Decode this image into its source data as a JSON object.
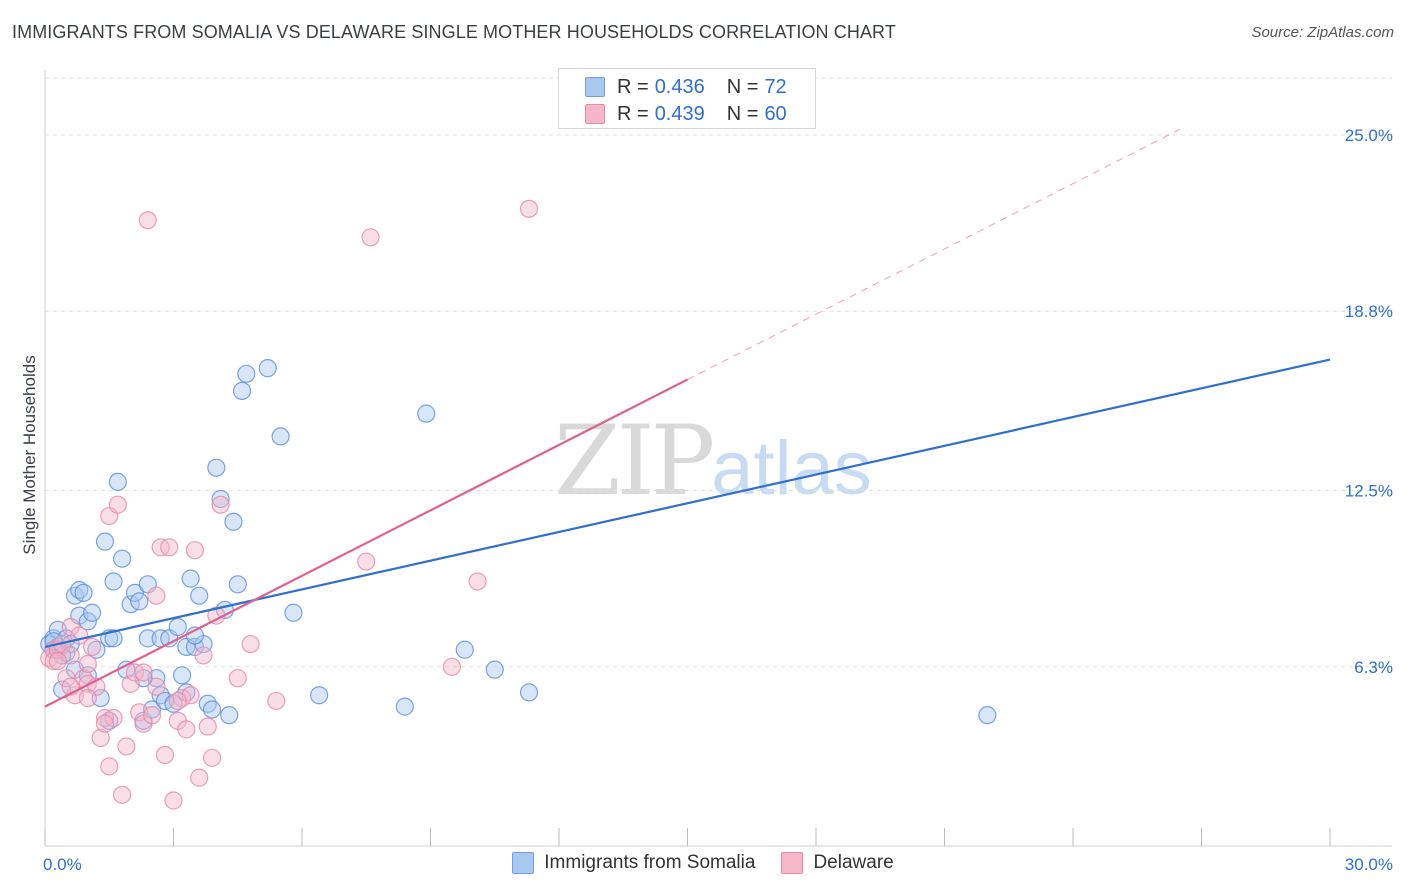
{
  "header": {
    "title": "IMMIGRANTS FROM SOMALIA VS DELAWARE SINGLE MOTHER HOUSEHOLDS CORRELATION CHART",
    "source": "Source: ZipAtlas.com"
  },
  "watermark": {
    "zip": "ZIP",
    "atlas": "atlas"
  },
  "legend_top": {
    "rows": [
      {
        "r_label": "R =",
        "r_value": "0.436",
        "n_label": "N =",
        "n_value": "72"
      },
      {
        "r_label": "R =",
        "r_value": "0.439",
        "n_label": "N =",
        "n_value": "60"
      }
    ]
  },
  "chart_data": {
    "type": "scatter",
    "title": "IMMIGRANTS FROM SOMALIA VS DELAWARE SINGLE MOTHER HOUSEHOLDS CORRELATION CHART",
    "xlabel": "",
    "ylabel": "Single Mother Households",
    "xlim": [
      0,
      30
    ],
    "ylim": [
      0,
      27
    ],
    "x_tick_labels": [
      "0.0%",
      "30.0%"
    ],
    "y_ticks": [
      6.3,
      12.5,
      18.8,
      25.0
    ],
    "y_tick_labels": [
      "6.3%",
      "12.5%",
      "18.8%",
      "25.0%"
    ],
    "grid": true,
    "legend_position": "bottom",
    "colors": {
      "somalia": "#2f6fce",
      "somalia_fill": "#a9c8f0",
      "delaware": "#e0608e",
      "delaware_fill": "#f5b6c9"
    },
    "series": [
      {
        "name": "Immigrants from Somalia",
        "x": [
          0.1,
          0.2,
          0.2,
          0.3,
          0.3,
          0.4,
          0.5,
          0.5,
          0.6,
          0.7,
          0.7,
          0.8,
          0.8,
          0.9,
          1.0,
          1.0,
          1.1,
          1.2,
          1.3,
          1.4,
          1.5,
          1.5,
          1.6,
          1.7,
          1.8,
          1.9,
          2.0,
          2.1,
          2.2,
          2.3,
          2.4,
          2.4,
          2.5,
          2.6,
          2.7,
          2.7,
          2.8,
          2.9,
          3.0,
          3.1,
          3.2,
          3.3,
          3.3,
          3.4,
          3.5,
          3.6,
          3.7,
          3.8,
          3.9,
          4.0,
          4.1,
          4.2,
          4.3,
          4.4,
          4.5,
          4.6,
          4.7,
          5.2,
          5.5,
          5.8,
          6.4,
          8.4,
          8.9,
          9.8,
          10.5,
          11.3,
          22.0,
          0.2,
          0.4,
          1.6,
          2.3,
          3.5
        ],
        "y": [
          7.1,
          7.3,
          6.9,
          7.0,
          7.6,
          5.5,
          7.3,
          6.8,
          7.1,
          8.8,
          6.2,
          8.1,
          9.0,
          8.9,
          7.9,
          6.0,
          8.2,
          6.9,
          5.2,
          10.7,
          4.4,
          7.3,
          9.3,
          12.8,
          10.1,
          6.2,
          8.5,
          8.9,
          8.6,
          4.4,
          9.2,
          7.3,
          4.8,
          5.9,
          5.3,
          7.3,
          5.1,
          7.3,
          5.0,
          7.7,
          6.0,
          7.0,
          5.4,
          9.4,
          7.0,
          8.8,
          7.1,
          5.0,
          4.8,
          13.3,
          12.2,
          8.3,
          4.6,
          11.4,
          9.2,
          16.0,
          16.6,
          16.8,
          14.4,
          8.2,
          5.3,
          4.9,
          15.2,
          6.9,
          6.2,
          5.4,
          4.6,
          7.2,
          6.7,
          7.3,
          5.9,
          7.4
        ]
      },
      {
        "name": "Delaware",
        "x": [
          0.1,
          0.2,
          0.2,
          0.3,
          0.4,
          0.5,
          0.6,
          0.6,
          0.7,
          0.8,
          0.9,
          1.0,
          1.0,
          1.1,
          1.2,
          1.3,
          1.4,
          1.5,
          1.5,
          1.6,
          1.7,
          1.8,
          1.9,
          2.0,
          2.1,
          2.2,
          2.3,
          2.4,
          2.5,
          2.6,
          2.7,
          2.8,
          2.9,
          3.0,
          3.1,
          3.2,
          3.3,
          3.4,
          3.5,
          3.6,
          3.7,
          3.8,
          3.9,
          4.0,
          4.1,
          4.5,
          4.8,
          5.4,
          7.5,
          7.6,
          9.5,
          10.1,
          11.3,
          0.3,
          0.6,
          1.0,
          1.4,
          2.3,
          2.6,
          3.1
        ],
        "y": [
          6.6,
          6.9,
          6.5,
          6.9,
          7.1,
          5.9,
          7.7,
          6.7,
          5.3,
          7.4,
          5.9,
          5.7,
          6.4,
          7.0,
          5.6,
          3.8,
          4.5,
          2.8,
          11.6,
          4.5,
          12.0,
          1.8,
          3.5,
          5.7,
          6.1,
          4.7,
          4.3,
          22.0,
          4.6,
          8.8,
          10.5,
          3.2,
          10.5,
          1.6,
          4.4,
          5.2,
          4.1,
          5.3,
          10.4,
          2.4,
          6.7,
          4.2,
          3.1,
          8.1,
          12.0,
          5.9,
          7.1,
          5.1,
          10.0,
          21.4,
          6.3,
          9.3,
          22.4,
          6.5,
          5.6,
          5.2,
          4.3,
          6.1,
          5.6,
          5.1
        ]
      }
    ],
    "trend_lines": [
      {
        "series": "Immigrants from Somalia",
        "x": [
          0,
          30
        ],
        "y": [
          7.0,
          17.1
        ]
      },
      {
        "series": "Delaware",
        "x": [
          0,
          15
        ],
        "y": [
          4.9,
          16.4
        ]
      },
      {
        "series": "Delaware",
        "x": [
          15,
          26.5
        ],
        "y": [
          16.4,
          25.2
        ],
        "style": "dashed"
      }
    ]
  },
  "legend_bottom": {
    "items": [
      {
        "label": "Immigrants from Somalia"
      },
      {
        "label": "Delaware"
      }
    ]
  }
}
